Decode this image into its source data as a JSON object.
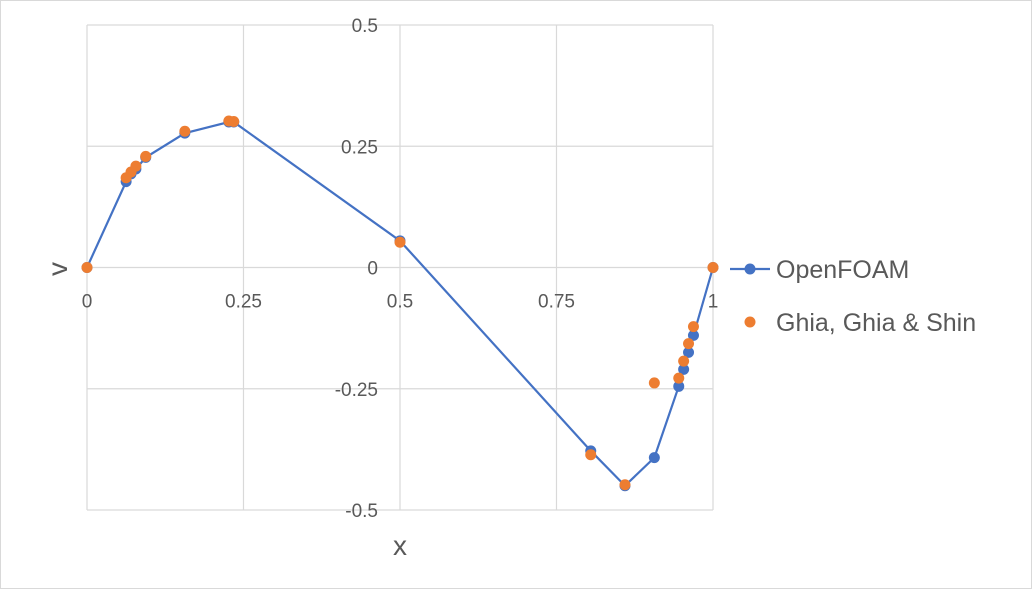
{
  "colors": {
    "openfoam": "#4472C4",
    "ghia": "#ED7D31",
    "grid": "#d9d9d9",
    "axis_text": "#595959"
  },
  "chart_data": {
    "type": "scatter",
    "title": "",
    "xlabel": "x",
    "ylabel": "v",
    "xlim": [
      0,
      1
    ],
    "ylim": [
      -0.5,
      0.5
    ],
    "x_ticks": [
      "0",
      "0.25",
      "0.5",
      "0.75",
      "1"
    ],
    "y_ticks": [
      "0.5",
      "0.25",
      "0",
      "-0.25",
      "-0.5"
    ],
    "grid": true,
    "legend_position": "right",
    "series": [
      {
        "name": "OpenFOAM",
        "style": "line-markers",
        "x": [
          0,
          0.0625,
          0.0703,
          0.0781,
          0.0938,
          0.1563,
          0.2266,
          0.2344,
          0.5,
          0.8047,
          0.8594,
          0.9063,
          0.9453,
          0.9531,
          0.9609,
          0.9688,
          1
        ],
        "y": [
          0,
          0.177,
          0.193,
          0.203,
          0.227,
          0.277,
          0.3,
          0.3,
          0.055,
          -0.378,
          -0.45,
          -0.392,
          -0.245,
          -0.21,
          -0.175,
          -0.14,
          0
        ]
      },
      {
        "name": "Ghia, Ghia & Shin",
        "style": "markers",
        "x": [
          0,
          0.0625,
          0.0703,
          0.0781,
          0.0938,
          0.1563,
          0.2266,
          0.2344,
          0.5,
          0.8047,
          0.8594,
          0.9063,
          0.9453,
          0.9531,
          0.9609,
          0.9688,
          1
        ],
        "y": [
          0,
          0.185,
          0.197,
          0.209,
          0.229,
          0.281,
          0.302,
          0.301,
          0.052,
          -0.386,
          -0.448,
          -0.238,
          -0.228,
          -0.193,
          -0.157,
          -0.122,
          0
        ]
      }
    ]
  }
}
